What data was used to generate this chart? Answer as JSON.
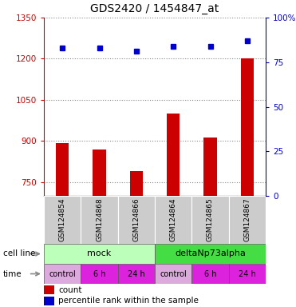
{
  "title": "GDS2420 / 1454847_at",
  "samples": [
    "GSM124854",
    "GSM124868",
    "GSM124866",
    "GSM124864",
    "GSM124865",
    "GSM124867"
  ],
  "bar_values": [
    893,
    869,
    790,
    1000,
    912,
    1202
  ],
  "percentile_values": [
    83,
    83,
    81,
    84,
    84,
    87
  ],
  "ylim_left": [
    700,
    1350
  ],
  "ylim_right": [
    0,
    100
  ],
  "yticks_left": [
    750,
    900,
    1050,
    1200,
    1350
  ],
  "yticks_right": [
    0,
    25,
    50,
    75,
    100
  ],
  "bar_color": "#cc0000",
  "dot_color": "#0000cc",
  "bar_baseline": 700,
  "cell_line_labels": [
    "mock",
    "deltaNp73alpha"
  ],
  "cell_line_spans": [
    [
      0,
      3
    ],
    [
      3,
      6
    ]
  ],
  "cell_line_color_mock": "#bbffbb",
  "cell_line_color_delta": "#44dd44",
  "time_labels": [
    "control",
    "6 h",
    "24 h",
    "control",
    "6 h",
    "24 h"
  ],
  "time_color_light": "#ddaadd",
  "time_color_dark": "#dd22dd",
  "row_label_cellline": "cell line",
  "row_label_time": "time",
  "legend_count_color": "#cc0000",
  "legend_pct_color": "#0000cc",
  "background_color": "#ffffff",
  "grid_color": "#888888",
  "sample_box_color": "#cccccc",
  "right_pct_labels": [
    "0",
    "25",
    "50",
    "75",
    "100%"
  ]
}
